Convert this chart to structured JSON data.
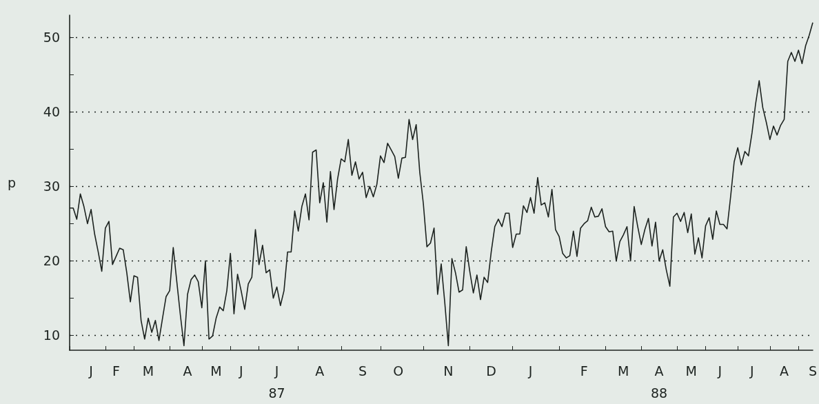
{
  "chart_data": {
    "type": "line",
    "ylabel": "p",
    "color": "#1c221f",
    "grid": "y",
    "ylim": [
      8,
      53
    ],
    "yticks": [
      10,
      {
        "value": 15,
        "label": null
      },
      20,
      {
        "value": 25,
        "label": null
      },
      30,
      {
        "value": 35,
        "label": null
      },
      40,
      {
        "value": 45,
        "label": null
      },
      50
    ],
    "categories": [
      null,
      null,
      null,
      null,
      null,
      null,
      "J",
      null,
      null,
      null,
      null,
      null,
      null,
      "F",
      null,
      null,
      null,
      null,
      null,
      null,
      null,
      null,
      "M",
      null,
      null,
      null,
      null,
      null,
      null,
      null,
      null,
      null,
      null,
      "A",
      null,
      null,
      null,
      null,
      null,
      null,
      null,
      "M",
      null,
      null,
      null,
      null,
      null,
      null,
      "J",
      null,
      null,
      null,
      null,
      null,
      null,
      null,
      null,
      null,
      "J\n87",
      null,
      null,
      null,
      null,
      null,
      null,
      null,
      null,
      null,
      null,
      null,
      "A",
      null,
      null,
      null,
      null,
      null,
      null,
      null,
      null,
      null,
      null,
      null,
      "S",
      null,
      null,
      null,
      null,
      null,
      null,
      null,
      null,
      null,
      "O",
      null,
      null,
      null,
      null,
      null,
      null,
      null,
      null,
      null,
      null,
      null,
      null,
      null,
      "N",
      null,
      null,
      null,
      null,
      null,
      null,
      null,
      null,
      null,
      null,
      null,
      "D",
      null,
      null,
      null,
      null,
      null,
      null,
      null,
      null,
      null,
      null,
      "J",
      null,
      null,
      null,
      null,
      null,
      null,
      null,
      null,
      null,
      null,
      null,
      null,
      null,
      null,
      "F",
      null,
      null,
      null,
      null,
      null,
      null,
      null,
      null,
      null,
      null,
      "M",
      null,
      null,
      null,
      null,
      null,
      null,
      null,
      null,
      null,
      "A\n88",
      null,
      null,
      null,
      null,
      null,
      null,
      null,
      null,
      "M",
      null,
      null,
      null,
      null,
      null,
      null,
      null,
      "J",
      null,
      null,
      null,
      null,
      null,
      null,
      null,
      null,
      "J",
      null,
      null,
      null,
      null,
      null,
      null,
      null,
      null,
      "A",
      null,
      null,
      null,
      null,
      null,
      null,
      null,
      "S"
    ],
    "values": [
      27.1,
      27.1,
      25.6,
      29.0,
      27.3,
      25.0,
      26.9,
      23.6,
      21.2,
      18.6,
      24.4,
      25.3,
      19.5,
      20.6,
      21.7,
      21.5,
      18.4,
      14.5,
      18.0,
      17.8,
      12.0,
      9.5,
      12.3,
      10.4,
      12.0,
      9.3,
      12.3,
      15.2,
      16.0,
      21.8,
      17.2,
      12.7,
      8.6,
      15.5,
      17.5,
      18.1,
      17.2,
      13.7,
      20.0,
      9.5,
      9.9,
      12.3,
      13.8,
      13.3,
      16.0,
      21.0,
      12.9,
      18.2,
      16.0,
      13.5,
      16.9,
      17.8,
      24.2,
      19.5,
      22.1,
      18.4,
      18.8,
      15.0,
      16.5,
      14.0,
      16.0,
      21.2,
      21.2,
      26.7,
      24.0,
      27.3,
      29.0,
      25.5,
      34.6,
      34.9,
      27.8,
      30.5,
      25.2,
      32.0,
      26.9,
      31.0,
      33.7,
      33.3,
      36.3,
      31.5,
      33.3,
      31.0,
      31.9,
      28.5,
      30.0,
      28.6,
      30.3,
      34.1,
      33.2,
      35.8,
      34.9,
      34.0,
      31.1,
      33.8,
      33.9,
      39.0,
      36.3,
      38.3,
      31.9,
      27.7,
      21.9,
      22.4,
      24.4,
      15.5,
      19.6,
      14.4,
      8.6,
      20.3,
      18.4,
      15.8,
      16.1,
      21.9,
      18.6,
      15.7,
      18.1,
      14.8,
      17.8,
      17.1,
      21.2,
      24.6,
      25.6,
      24.6,
      26.4,
      26.4,
      21.8,
      23.6,
      23.6,
      27.4,
      26.5,
      28.5,
      26.4,
      31.2,
      27.5,
      27.8,
      25.9,
      29.6,
      24.2,
      23.3,
      21.0,
      20.4,
      20.7,
      24.0,
      20.6,
      24.4,
      25.0,
      25.4,
      27.2,
      25.9,
      26.0,
      27.0,
      24.6,
      23.9,
      24.0,
      20.0,
      22.6,
      23.5,
      24.6,
      20.0,
      27.3,
      24.6,
      22.2,
      24.2,
      25.7,
      22.0,
      25.2,
      20.0,
      21.5,
      18.8,
      16.6,
      25.9,
      26.4,
      25.3,
      26.5,
      23.8,
      26.3,
      20.9,
      23.1,
      20.4,
      24.7,
      25.8,
      22.9,
      26.7,
      24.9,
      24.9,
      24.3,
      28.6,
      33.3,
      35.2,
      32.9,
      34.7,
      34.1,
      37.2,
      41.1,
      44.2,
      40.6,
      38.6,
      36.3,
      38.1,
      36.9,
      38.2,
      39.0,
      46.8,
      48.0,
      46.8,
      48.3,
      46.5,
      48.9,
      50.3,
      52.0
    ]
  }
}
